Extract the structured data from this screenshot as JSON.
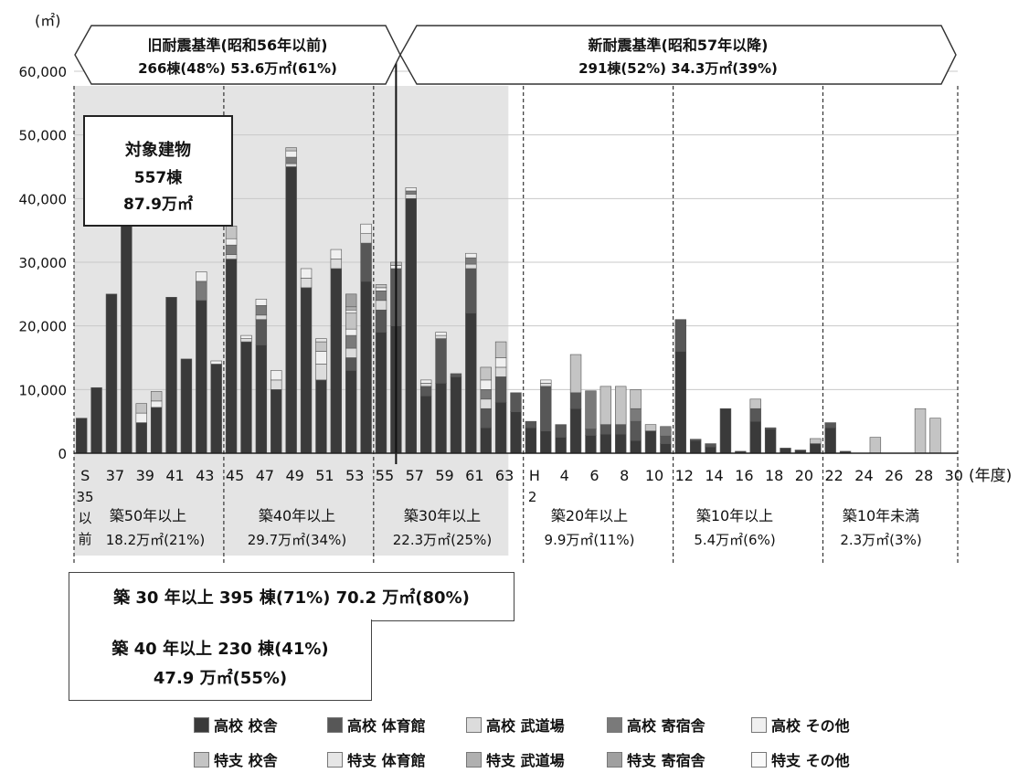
{
  "chart_data": {
    "type": "bar",
    "stacked": true,
    "y_unit": "(㎡)",
    "x_unit": "(年度)",
    "ylim": [
      0,
      60000
    ],
    "yticks": [
      "0",
      "10,000",
      "20,000",
      "30,000",
      "40,000",
      "50,000",
      "60,000"
    ],
    "xtick_labels": [
      {
        "slot": 0,
        "label": "S"
      },
      {
        "slot": 2,
        "label": "37"
      },
      {
        "slot": 4,
        "label": "39"
      },
      {
        "slot": 6,
        "label": "41"
      },
      {
        "slot": 8,
        "label": "43"
      },
      {
        "slot": 10,
        "label": "45"
      },
      {
        "slot": 12,
        "label": "47"
      },
      {
        "slot": 14,
        "label": "49"
      },
      {
        "slot": 16,
        "label": "51"
      },
      {
        "slot": 18,
        "label": "53"
      },
      {
        "slot": 20,
        "label": "55"
      },
      {
        "slot": 22,
        "label": "57"
      },
      {
        "slot": 24,
        "label": "59"
      },
      {
        "slot": 26,
        "label": "61"
      },
      {
        "slot": 28,
        "label": "63"
      },
      {
        "slot": 30,
        "label": "H"
      },
      {
        "slot": 32,
        "label": "4"
      },
      {
        "slot": 34,
        "label": "6"
      },
      {
        "slot": 36,
        "label": "8"
      },
      {
        "slot": 38,
        "label": "10"
      },
      {
        "slot": 40,
        "label": "12"
      },
      {
        "slot": 42,
        "label": "14"
      },
      {
        "slot": 44,
        "label": "16"
      },
      {
        "slot": 46,
        "label": "18"
      },
      {
        "slot": 48,
        "label": "20"
      },
      {
        "slot": 50,
        "label": "22"
      },
      {
        "slot": 52,
        "label": "24"
      },
      {
        "slot": 54,
        "label": "26"
      },
      {
        "slot": 56,
        "label": "28"
      },
      {
        "slot": 58,
        "label": "30"
      }
    ],
    "xtick_sub": [
      {
        "slot": 0,
        "label": "35"
      },
      {
        "slot": 0,
        "label": "以"
      },
      {
        "slot": 0,
        "label": "前"
      },
      {
        "slot": 30,
        "label": "2"
      }
    ],
    "categories": [
      "S35以前",
      "36",
      "37",
      "38",
      "39",
      "40",
      "41",
      "42",
      "43",
      "44",
      "45",
      "46",
      "47",
      "48",
      "49",
      "50",
      "51",
      "52",
      "53",
      "54",
      "55",
      "56",
      "57",
      "58",
      "59",
      "60",
      "61",
      "62",
      "63",
      "H元",
      "H2",
      "3",
      "4",
      "5",
      "6",
      "7",
      "8",
      "9",
      "10",
      "11",
      "12",
      "13",
      "14",
      "15",
      "16",
      "17",
      "18",
      "19",
      "20",
      "21",
      "22",
      "23",
      "24",
      "25",
      "26",
      "27",
      "28",
      "29",
      "30"
    ],
    "series": [
      {
        "name": "高校 校舎",
        "color": "#3a3a3a",
        "values": [
          5500,
          10300,
          25000,
          36000,
          4800,
          7200,
          24500,
          14800,
          24000,
          14000,
          30500,
          17500,
          17000,
          10000,
          45000,
          26000,
          11500,
          29000,
          13000,
          27000,
          19000,
          20000,
          40000,
          9000,
          11000,
          12000,
          22000,
          4000,
          8000,
          6500,
          4000,
          3500,
          2500,
          7000,
          2800,
          3000,
          3000,
          2000,
          3500,
          1500,
          16000,
          2000,
          1000,
          7000,
          300,
          5000,
          3800,
          800,
          500,
          1500,
          4000,
          300,
          0,
          0,
          0,
          0,
          0,
          0,
          0
        ]
      },
      {
        "name": "高校 体育館",
        "color": "#575757",
        "values": [
          0,
          0,
          0,
          0,
          0,
          0,
          0,
          0,
          0,
          0,
          0,
          0,
          4000,
          0,
          0,
          0,
          0,
          0,
          2000,
          6000,
          3500,
          9000,
          0,
          1500,
          7000,
          500,
          7000,
          3000,
          4000,
          3000,
          1000,
          7000,
          2000,
          2500,
          1000,
          1500,
          1500,
          3000,
          0,
          1200,
          5000,
          200,
          500,
          0,
          0,
          2000,
          200,
          0,
          0,
          0,
          800,
          0,
          0,
          0,
          0,
          0,
          0,
          0,
          0
        ]
      },
      {
        "name": "高校 武道場",
        "color": "#dcdcdc",
        "values": [
          0,
          0,
          0,
          0,
          0,
          0,
          0,
          0,
          0,
          0,
          700,
          500,
          700,
          1500,
          500,
          1500,
          2500,
          1500,
          1500,
          1500,
          1500,
          0,
          700,
          500,
          500,
          0,
          700,
          1500,
          1500,
          0,
          0,
          500,
          0,
          0,
          0,
          0,
          0,
          0,
          0,
          0,
          0,
          0,
          0,
          0,
          0,
          0,
          0,
          0,
          0,
          0,
          0,
          0,
          0,
          0,
          0,
          0,
          0,
          0,
          0
        ]
      },
      {
        "name": "高校 寄宿舎",
        "color": "#7a7a7a",
        "values": [
          0,
          0,
          0,
          0,
          0,
          0,
          0,
          0,
          3000,
          0,
          1500,
          0,
          1500,
          0,
          1000,
          0,
          0,
          0,
          2000,
          0,
          1500,
          0,
          500,
          0,
          0,
          0,
          1000,
          1500,
          0,
          0,
          0,
          0,
          0,
          0,
          6000,
          0,
          0,
          2000,
          0,
          1500,
          0,
          0,
          0,
          0,
          0,
          0,
          0,
          0,
          0,
          0,
          0,
          0,
          0,
          0,
          0,
          0,
          0,
          0,
          0
        ]
      },
      {
        "name": "高校 その他",
        "color": "#f0f0f0",
        "values": [
          0,
          0,
          0,
          0,
          1500,
          1000,
          0,
          0,
          1500,
          500,
          1000,
          500,
          1000,
          1500,
          1000,
          1500,
          2000,
          1500,
          1000,
          1500,
          500,
          500,
          500,
          500,
          500,
          0,
          700,
          1500,
          1500,
          0,
          0,
          500,
          0,
          0,
          0,
          0,
          0,
          0,
          0,
          0,
          0,
          0,
          0,
          0,
          0,
          0,
          0,
          0,
          0,
          0,
          0,
          0,
          0,
          0,
          0,
          0,
          0,
          0,
          0
        ]
      },
      {
        "name": "特支 校舎",
        "color": "#c4c4c4",
        "values": [
          0,
          0,
          0,
          0,
          1500,
          1500,
          0,
          0,
          0,
          0,
          2000,
          0,
          0,
          0,
          500,
          0,
          1500,
          0,
          2500,
          0,
          500,
          500,
          0,
          0,
          0,
          0,
          0,
          2000,
          2500,
          0,
          0,
          0,
          0,
          6000,
          0,
          6000,
          6000,
          3000,
          1000,
          0,
          0,
          0,
          0,
          0,
          0,
          1500,
          0,
          0,
          0,
          800,
          0,
          0,
          0,
          2500,
          0,
          0,
          7000,
          5500,
          0
        ]
      },
      {
        "name": "特支 体育館",
        "color": "#e6e6e6",
        "values": [
          0,
          0,
          0,
          0,
          0,
          0,
          0,
          0,
          0,
          0,
          0,
          0,
          0,
          0,
          0,
          0,
          500,
          0,
          500,
          0,
          0,
          0,
          0,
          0,
          0,
          0,
          0,
          0,
          0,
          0,
          0,
          0,
          0,
          0,
          0,
          0,
          0,
          0,
          0,
          0,
          0,
          0,
          0,
          0,
          0,
          0,
          0,
          0,
          0,
          0,
          0,
          0,
          0,
          0,
          0,
          0,
          0,
          0,
          0
        ]
      },
      {
        "name": "特支 武道場",
        "color": "#b0b0b0",
        "values": [
          0,
          0,
          0,
          0,
          0,
          0,
          0,
          0,
          0,
          0,
          0,
          0,
          0,
          0,
          0,
          0,
          0,
          0,
          500,
          0,
          0,
          0,
          0,
          0,
          0,
          0,
          0,
          0,
          0,
          0,
          0,
          0,
          0,
          0,
          0,
          0,
          0,
          0,
          0,
          0,
          0,
          0,
          0,
          0,
          0,
          0,
          0,
          0,
          0,
          0,
          0,
          0,
          0,
          0,
          0,
          0,
          0,
          0,
          0
        ]
      },
      {
        "name": "特支 寄宿舎",
        "color": "#a0a0a0",
        "values": [
          0,
          0,
          0,
          0,
          0,
          0,
          0,
          0,
          0,
          0,
          0,
          0,
          0,
          0,
          0,
          0,
          0,
          0,
          2000,
          0,
          0,
          0,
          0,
          0,
          0,
          0,
          0,
          0,
          0,
          0,
          0,
          0,
          0,
          0,
          0,
          0,
          0,
          0,
          0,
          0,
          0,
          0,
          0,
          0,
          0,
          0,
          0,
          0,
          0,
          0,
          0,
          0,
          0,
          0,
          0,
          0,
          0,
          0,
          0
        ]
      },
      {
        "name": "特支 その他",
        "color": "#fafafa",
        "values": [
          0,
          0,
          0,
          0,
          0,
          0,
          0,
          0,
          0,
          0,
          0,
          0,
          0,
          0,
          0,
          0,
          0,
          0,
          0,
          0,
          0,
          0,
          0,
          0,
          0,
          0,
          0,
          0,
          0,
          0,
          0,
          0,
          0,
          0,
          0,
          0,
          0,
          0,
          0,
          0,
          0,
          0,
          0,
          0,
          0,
          0,
          0,
          0,
          0,
          0,
          0,
          0,
          0,
          0,
          0,
          0,
          0,
          0,
          0
        ]
      }
    ],
    "era_banners": {
      "old": {
        "title": "旧耐震基準(昭和56年以前)",
        "stats": "266棟(48%)  53.6万㎡(61%)"
      },
      "new": {
        "title": "新耐震基準(昭和57年以降)",
        "stats": "291棟(52%)  34.3万㎡(39%)"
      }
    },
    "age_bands": [
      {
        "label": "築50年以上",
        "stats": "18.2万㎡(21%)"
      },
      {
        "label": "築40年以上",
        "stats": "29.7万㎡(34%)"
      },
      {
        "label": "築30年以上",
        "stats": "22.3万㎡(25%)"
      },
      {
        "label": "築20年以上",
        "stats": "9.9万㎡(11%)"
      },
      {
        "label": "築10年以上",
        "stats": "5.4万㎡(6%)"
      },
      {
        "label": "築10年未満",
        "stats": "2.3万㎡(3%)"
      }
    ],
    "annotations": {
      "target": {
        "line1": "対象建物",
        "line2": "557棟",
        "line3": "87.9万㎡"
      },
      "over30": "築 30 年以上 395 棟(71%) 70.2 万㎡(80%)",
      "over40_line1": "築 40 年以上  230 棟(41%)",
      "over40_line2": "47.9 万㎡(55%)"
    },
    "grid": true,
    "legend_position": "bottom"
  }
}
